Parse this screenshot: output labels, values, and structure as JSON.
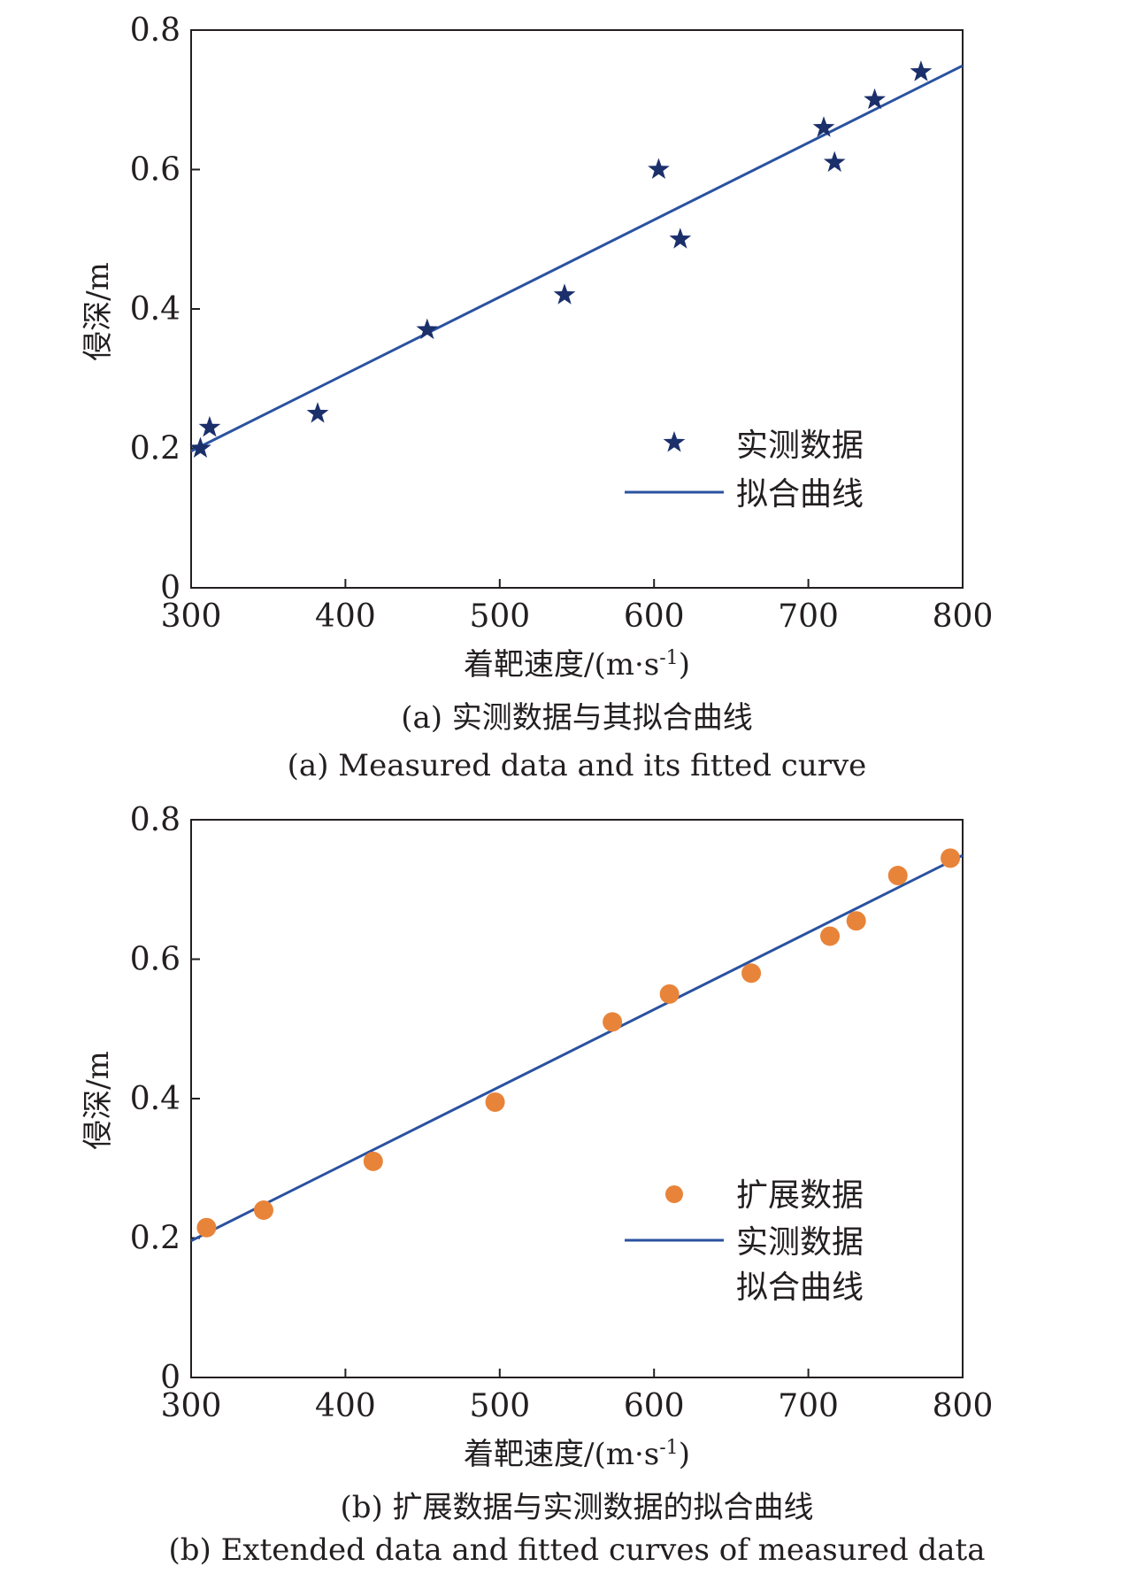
{
  "chart_data": [
    {
      "type": "scatter",
      "caption_cn": "(a) 实测数据与其拟合曲线",
      "caption_en": "(a) Measured data and its fitted curve",
      "xlabel": "着靶速度/(m·s",
      "xlabel_sup": "-1",
      "xlabel_end": ")",
      "ylabel": "侵深/m",
      "xlim": [
        300,
        800
      ],
      "ylim": [
        0,
        0.8
      ],
      "x_ticks": [
        "300",
        "400",
        "500",
        "600",
        "700",
        "800"
      ],
      "y_ticks": [
        "0",
        "0.2",
        "0.4",
        "0.6",
        "0.8"
      ],
      "grid": false,
      "legend_position": "lower-right",
      "series": [
        {
          "name": "实测数据",
          "kind": "points",
          "marker": "star",
          "color": "#1b2f6b",
          "x": [
            306,
            312,
            382,
            453,
            542,
            603,
            617,
            710,
            717,
            743,
            773
          ],
          "y": [
            0.2,
            0.23,
            0.25,
            0.37,
            0.42,
            0.6,
            0.5,
            0.66,
            0.61,
            0.7,
            0.74
          ]
        },
        {
          "name": "拟合曲线",
          "kind": "line",
          "color": "#2a52a0",
          "x": [
            300,
            800
          ],
          "y": [
            0.196,
            0.749
          ]
        }
      ]
    },
    {
      "type": "scatter",
      "caption_cn": "(b) 扩展数据与实测数据的拟合曲线",
      "caption_en": "(b) Extended data and fitted curves of measured data",
      "xlabel": "着靶速度/(m·s",
      "xlabel_sup": "-1",
      "xlabel_end": ")",
      "ylabel": "侵深/m",
      "xlim": [
        300,
        800
      ],
      "ylim": [
        0,
        0.8
      ],
      "x_ticks": [
        "300",
        "400",
        "500",
        "600",
        "700",
        "800"
      ],
      "y_ticks": [
        "0",
        "0.2",
        "0.4",
        "0.6",
        "0.8"
      ],
      "grid": false,
      "legend_position": "lower-right",
      "series": [
        {
          "name": "扩展数据",
          "kind": "points",
          "marker": "circle",
          "color": "#e8843a",
          "x": [
            310,
            347,
            418,
            497,
            573,
            610,
            663,
            714,
            731,
            758,
            792
          ],
          "y": [
            0.215,
            0.24,
            0.31,
            0.395,
            0.51,
            0.55,
            0.58,
            0.633,
            0.655,
            0.72,
            0.745
          ]
        },
        {
          "name": "实测数据",
          "name_line2": "拟合曲线",
          "kind": "line",
          "color": "#2a52a0",
          "x": [
            300,
            800
          ],
          "y": [
            0.196,
            0.749
          ]
        }
      ]
    }
  ]
}
